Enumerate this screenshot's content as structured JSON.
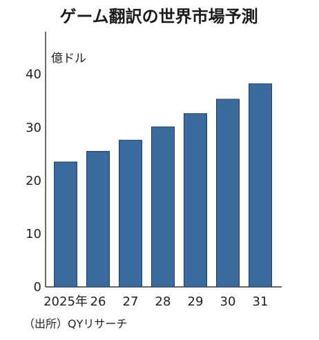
{
  "chart_data": {
    "type": "bar",
    "title": "ゲーム翻訳の世界市場予測",
    "ylabel": "億ドル",
    "xlabel": "",
    "categories": [
      "2025年",
      "26",
      "27",
      "28",
      "29",
      "30",
      "31"
    ],
    "values": [
      23.5,
      25.5,
      27.6,
      30.1,
      32.6,
      35.3,
      38.2
    ],
    "ylim": [
      0,
      48
    ],
    "yticks": [
      0,
      10,
      20,
      30,
      40
    ],
    "grid": false,
    "bar_color": "#3b6b9c",
    "source": "（出所）QYリサーチ"
  }
}
